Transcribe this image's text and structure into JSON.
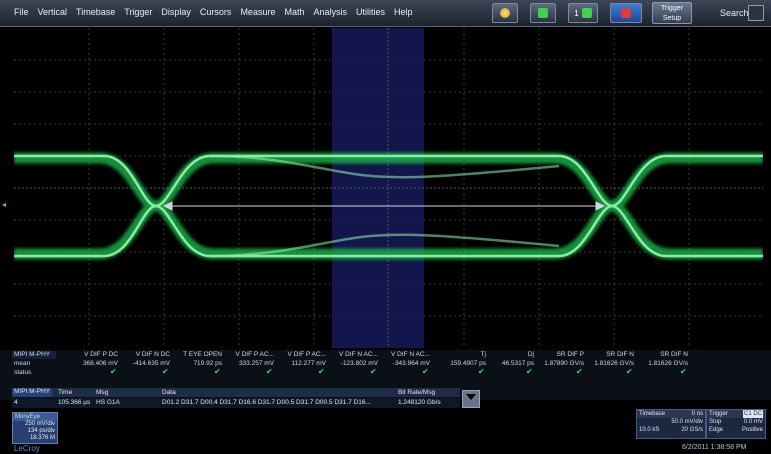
{
  "menu": [
    "File",
    "Vertical",
    "Timebase",
    "Trigger",
    "Display",
    "Cursors",
    "Measure",
    "Math",
    "Analysis",
    "Utilities",
    "Help"
  ],
  "toolbar": {
    "trigger_setup_line1": "Trigger",
    "trigger_setup_line2": "Setup",
    "search_label": "Search",
    "channel_badge": "1"
  },
  "measurements": {
    "param_title": "MIPI M-PHY",
    "row_mean": "mean",
    "row_status": "status",
    "columns": [
      {
        "name": "V DIF P DC",
        "value": "368.406 mV"
      },
      {
        "name": "V DIF N DC",
        "value": "-414.635 mV"
      },
      {
        "name": "T EYE OPEN",
        "value": "719.92 ps"
      },
      {
        "name": "V DIF P AC...",
        "value": "333.257 mV"
      },
      {
        "name": "V DIF P AC...",
        "value": "112.277 mV"
      },
      {
        "name": "V DIF N AC...",
        "value": "-123.802 mV"
      },
      {
        "name": "V DIF N AC...",
        "value": "-343.964 mV"
      },
      {
        "name": "Tj",
        "value": "159.4907 ps"
      },
      {
        "name": "Dj",
        "value": "46.5317 ps"
      },
      {
        "name": "SR DIF P",
        "value": "1.87890 GV/s"
      },
      {
        "name": "SR DIF N",
        "value": "1.81626 GV/s"
      },
      {
        "name": "SR DIF N",
        "value": "1.81626 GV/s"
      }
    ]
  },
  "decode_table": {
    "title": "MIPI M-PHY",
    "headers": {
      "time": "Time",
      "msg": "Msg",
      "data": "Data",
      "bitrate": "Bit Rate/Msg"
    },
    "row": {
      "index": "4",
      "time": "105.366 µs",
      "msg": "HS G1A",
      "data": "D01.2 D31.7 D00.4 D31.7 D16.6 D31.7 D00.5 D31.7 D00.5 D31.7 D16...",
      "bitrate": "1.248120 Gb/s"
    }
  },
  "trace_descriptor": {
    "name": "MonyEye",
    "line1": "250 mV/div",
    "line2": "134 ps/div",
    "line3": "18.376 M"
  },
  "timebase": {
    "title": "Timebase",
    "offset": "0 ns",
    "rate": "50.0 mV/div",
    "samples": "10.0 kS",
    "sample_rate": "20 GS/s"
  },
  "trigger": {
    "title": "Trigger",
    "badge": "C1 DC",
    "mode": "Stop",
    "level": "0.0 mV",
    "type": "Edge",
    "slope": "Positive"
  },
  "footer": {
    "brand": "LeCroy",
    "datetime": "6/2/2011 1:38:58 PM"
  }
}
